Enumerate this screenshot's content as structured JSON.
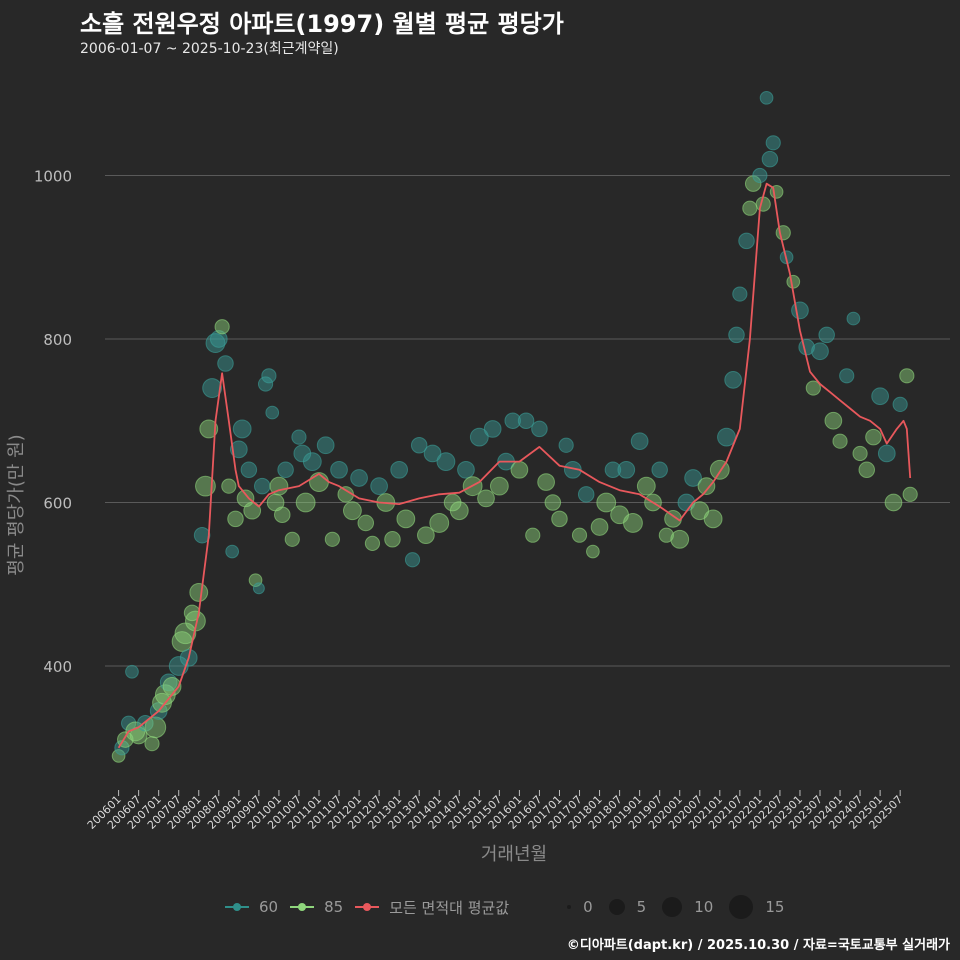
{
  "title": "소흘 전원우정 아파트(1997) 월별 평균 평당가",
  "subtitle": "2006-01-07 ~ 2025-10-23(최근계약일)",
  "caption": "©디아파트(dapt.kr) / 2025.10.30 / 자료=국토교통부 실거래가",
  "colors": {
    "s60": "#3a9e98",
    "s85": "#8fd67c",
    "mean": "#e8585c",
    "grid": "#5a5a5a",
    "bg": "#282828"
  },
  "legend": {
    "s60": "60",
    "s85": "85",
    "mean": "모든 면적대 평균값",
    "sizes": [
      "0",
      "5",
      "10",
      "15"
    ]
  },
  "chart_data": {
    "type": "scatter",
    "title": "소흘 전원우정 아파트(1997) 월별 평균 평당가",
    "xlabel": "거래년월",
    "ylabel": "평균 평당가(만 원)",
    "ylim": [
      250,
      1110
    ],
    "xlim_month_index": [
      -4,
      240
    ],
    "x_origin": "200601",
    "yticks": [
      400,
      600,
      800,
      1000
    ],
    "xticks": [
      "200601",
      "200607",
      "200701",
      "200707",
      "200801",
      "200807",
      "200901",
      "200907",
      "201001",
      "201007",
      "201101",
      "201107",
      "201201",
      "201207",
      "201301",
      "201307",
      "201401",
      "201407",
      "201501",
      "201507",
      "201601",
      "201607",
      "201701",
      "201707",
      "201801",
      "201807",
      "201901",
      "201907",
      "202001",
      "202007",
      "202101",
      "202107",
      "202201",
      "202207",
      "202301",
      "202307",
      "202401",
      "202407",
      "202501",
      "202507"
    ],
    "mean_line": [
      [
        0,
        300
      ],
      [
        3,
        320
      ],
      [
        6,
        325
      ],
      [
        12,
        345
      ],
      [
        18,
        375
      ],
      [
        21,
        410
      ],
      [
        24,
        465
      ],
      [
        27,
        560
      ],
      [
        29,
        700
      ],
      [
        31,
        758
      ],
      [
        33,
        700
      ],
      [
        35,
        640
      ],
      [
        36,
        620
      ],
      [
        39,
        605
      ],
      [
        42,
        595
      ],
      [
        45,
        610
      ],
      [
        48,
        615
      ],
      [
        54,
        620
      ],
      [
        60,
        635
      ],
      [
        63,
        625
      ],
      [
        66,
        620
      ],
      [
        72,
        605
      ],
      [
        78,
        600
      ],
      [
        84,
        598
      ],
      [
        90,
        605
      ],
      [
        96,
        610
      ],
      [
        102,
        612
      ],
      [
        108,
        625
      ],
      [
        114,
        650
      ],
      [
        120,
        650
      ],
      [
        126,
        668
      ],
      [
        132,
        645
      ],
      [
        138,
        640
      ],
      [
        144,
        625
      ],
      [
        150,
        615
      ],
      [
        156,
        610
      ],
      [
        162,
        595
      ],
      [
        168,
        578
      ],
      [
        172,
        600
      ],
      [
        175,
        610
      ],
      [
        178,
        625
      ],
      [
        182,
        650
      ],
      [
        186,
        690
      ],
      [
        189,
        800
      ],
      [
        192,
        960
      ],
      [
        194,
        990
      ],
      [
        196,
        985
      ],
      [
        198,
        930
      ],
      [
        201,
        880
      ],
      [
        204,
        810
      ],
      [
        207,
        760
      ],
      [
        210,
        745
      ],
      [
        213,
        735
      ],
      [
        216,
        725
      ],
      [
        219,
        715
      ],
      [
        222,
        705
      ],
      [
        225,
        700
      ],
      [
        228,
        690
      ],
      [
        230,
        672
      ],
      [
        233,
        690
      ],
      [
        235,
        700
      ],
      [
        236,
        690
      ],
      [
        237,
        630
      ]
    ],
    "points_fields": [
      "month_index",
      "value",
      "count",
      "type"
    ],
    "points": [
      [
        0,
        290,
        3,
        "85"
      ],
      [
        1,
        300,
        4,
        "60"
      ],
      [
        2,
        310,
        5,
        "85"
      ],
      [
        3,
        330,
        4,
        "60"
      ],
      [
        4,
        393,
        3,
        "60"
      ],
      [
        5,
        320,
        8,
        "85"
      ],
      [
        6,
        315,
        6,
        "85"
      ],
      [
        8,
        330,
        5,
        "60"
      ],
      [
        10,
        305,
        4,
        "85"
      ],
      [
        11,
        325,
        10,
        "85"
      ],
      [
        12,
        345,
        6,
        "60"
      ],
      [
        13,
        355,
        8,
        "85"
      ],
      [
        14,
        365,
        9,
        "85"
      ],
      [
        15,
        380,
        6,
        "60"
      ],
      [
        16,
        375,
        7,
        "85"
      ],
      [
        18,
        400,
        8,
        "60"
      ],
      [
        19,
        430,
        9,
        "85"
      ],
      [
        20,
        440,
        10,
        "85"
      ],
      [
        21,
        410,
        6,
        "60"
      ],
      [
        22,
        465,
        5,
        "85"
      ],
      [
        23,
        455,
        9,
        "85"
      ],
      [
        24,
        490,
        7,
        "85"
      ],
      [
        25,
        560,
        5,
        "60"
      ],
      [
        26,
        620,
        9,
        "85"
      ],
      [
        27,
        690,
        7,
        "85"
      ],
      [
        28,
        740,
        8,
        "60"
      ],
      [
        29,
        795,
        8,
        "60"
      ],
      [
        30,
        800,
        6,
        "60"
      ],
      [
        31,
        815,
        4,
        "85"
      ],
      [
        32,
        770,
        5,
        "60"
      ],
      [
        33,
        620,
        4,
        "85"
      ],
      [
        34,
        540,
        3,
        "60"
      ],
      [
        35,
        580,
        5,
        "85"
      ],
      [
        36,
        665,
        6,
        "60"
      ],
      [
        37,
        690,
        7,
        "60"
      ],
      [
        38,
        605,
        6,
        "85"
      ],
      [
        39,
        640,
        5,
        "60"
      ],
      [
        40,
        590,
        6,
        "85"
      ],
      [
        41,
        505,
        3,
        "85"
      ],
      [
        42,
        495,
        2,
        "60"
      ],
      [
        43,
        620,
        5,
        "60"
      ],
      [
        44,
        745,
        4,
        "60"
      ],
      [
        45,
        755,
        4,
        "60"
      ],
      [
        46,
        710,
        3,
        "60"
      ],
      [
        47,
        600,
        6,
        "85"
      ],
      [
        48,
        620,
        7,
        "85"
      ],
      [
        49,
        585,
        5,
        "85"
      ],
      [
        50,
        640,
        5,
        "60"
      ],
      [
        52,
        555,
        4,
        "85"
      ],
      [
        54,
        680,
        4,
        "60"
      ],
      [
        55,
        660,
        6,
        "60"
      ],
      [
        56,
        600,
        8,
        "85"
      ],
      [
        58,
        650,
        7,
        "60"
      ],
      [
        60,
        625,
        8,
        "85"
      ],
      [
        62,
        670,
        6,
        "60"
      ],
      [
        64,
        555,
        4,
        "85"
      ],
      [
        66,
        640,
        6,
        "60"
      ],
      [
        68,
        610,
        5,
        "85"
      ],
      [
        70,
        590,
        7,
        "85"
      ],
      [
        72,
        630,
        6,
        "60"
      ],
      [
        74,
        575,
        5,
        "85"
      ],
      [
        76,
        550,
        4,
        "85"
      ],
      [
        78,
        620,
        6,
        "60"
      ],
      [
        80,
        600,
        7,
        "85"
      ],
      [
        82,
        555,
        5,
        "85"
      ],
      [
        84,
        640,
        6,
        "60"
      ],
      [
        86,
        580,
        7,
        "85"
      ],
      [
        88,
        530,
        4,
        "60"
      ],
      [
        90,
        670,
        5,
        "60"
      ],
      [
        92,
        560,
        6,
        "85"
      ],
      [
        94,
        660,
        6,
        "60"
      ],
      [
        96,
        575,
        8,
        "85"
      ],
      [
        98,
        650,
        7,
        "60"
      ],
      [
        100,
        600,
        6,
        "85"
      ],
      [
        102,
        590,
        7,
        "85"
      ],
      [
        104,
        640,
        6,
        "60"
      ],
      [
        106,
        620,
        8,
        "85"
      ],
      [
        108,
        680,
        7,
        "60"
      ],
      [
        110,
        605,
        6,
        "85"
      ],
      [
        112,
        690,
        6,
        "60"
      ],
      [
        114,
        620,
        7,
        "85"
      ],
      [
        116,
        650,
        6,
        "60"
      ],
      [
        118,
        700,
        5,
        "60"
      ],
      [
        120,
        640,
        6,
        "85"
      ],
      [
        122,
        700,
        5,
        "60"
      ],
      [
        124,
        560,
        4,
        "85"
      ],
      [
        126,
        690,
        5,
        "60"
      ],
      [
        128,
        625,
        6,
        "85"
      ],
      [
        130,
        600,
        5,
        "85"
      ],
      [
        132,
        580,
        5,
        "85"
      ],
      [
        134,
        670,
        4,
        "60"
      ],
      [
        136,
        640,
        6,
        "60"
      ],
      [
        138,
        560,
        4,
        "85"
      ],
      [
        140,
        610,
        5,
        "60"
      ],
      [
        142,
        540,
        3,
        "85"
      ],
      [
        144,
        570,
        6,
        "85"
      ],
      [
        146,
        600,
        8,
        "85"
      ],
      [
        148,
        640,
        5,
        "60"
      ],
      [
        150,
        585,
        7,
        "85"
      ],
      [
        152,
        640,
        6,
        "60"
      ],
      [
        154,
        575,
        8,
        "85"
      ],
      [
        156,
        675,
        6,
        "60"
      ],
      [
        158,
        620,
        7,
        "85"
      ],
      [
        160,
        600,
        6,
        "85"
      ],
      [
        162,
        640,
        5,
        "60"
      ],
      [
        164,
        560,
        4,
        "85"
      ],
      [
        166,
        580,
        6,
        "85"
      ],
      [
        168,
        555,
        7,
        "85"
      ],
      [
        170,
        600,
        6,
        "60"
      ],
      [
        172,
        630,
        6,
        "60"
      ],
      [
        174,
        590,
        7,
        "85"
      ],
      [
        176,
        620,
        6,
        "85"
      ],
      [
        178,
        580,
        7,
        "85"
      ],
      [
        180,
        640,
        8,
        "85"
      ],
      [
        182,
        680,
        7,
        "60"
      ],
      [
        184,
        750,
        6,
        "60"
      ],
      [
        185,
        805,
        5,
        "60"
      ],
      [
        186,
        855,
        4,
        "60"
      ],
      [
        188,
        920,
        5,
        "60"
      ],
      [
        189,
        960,
        4,
        "85"
      ],
      [
        190,
        990,
        5,
        "85"
      ],
      [
        192,
        1000,
        4,
        "60"
      ],
      [
        193,
        965,
        4,
        "85"
      ],
      [
        194,
        1095,
        3,
        "60"
      ],
      [
        195,
        1020,
        5,
        "60"
      ],
      [
        196,
        1040,
        4,
        "60"
      ],
      [
        197,
        980,
        3,
        "85"
      ],
      [
        199,
        930,
        4,
        "85"
      ],
      [
        200,
        900,
        3,
        "60"
      ],
      [
        202,
        870,
        3,
        "85"
      ],
      [
        204,
        835,
        6,
        "60"
      ],
      [
        206,
        790,
        5,
        "60"
      ],
      [
        208,
        740,
        4,
        "85"
      ],
      [
        210,
        785,
        6,
        "60"
      ],
      [
        212,
        805,
        5,
        "60"
      ],
      [
        214,
        700,
        6,
        "85"
      ],
      [
        216,
        675,
        4,
        "85"
      ],
      [
        218,
        755,
        4,
        "60"
      ],
      [
        220,
        825,
        3,
        "60"
      ],
      [
        222,
        660,
        4,
        "85"
      ],
      [
        224,
        640,
        5,
        "85"
      ],
      [
        226,
        680,
        5,
        "85"
      ],
      [
        228,
        730,
        6,
        "60"
      ],
      [
        230,
        660,
        6,
        "60"
      ],
      [
        232,
        600,
        6,
        "85"
      ],
      [
        234,
        720,
        4,
        "60"
      ],
      [
        236,
        755,
        4,
        "85"
      ],
      [
        237,
        610,
        4,
        "85"
      ]
    ]
  }
}
